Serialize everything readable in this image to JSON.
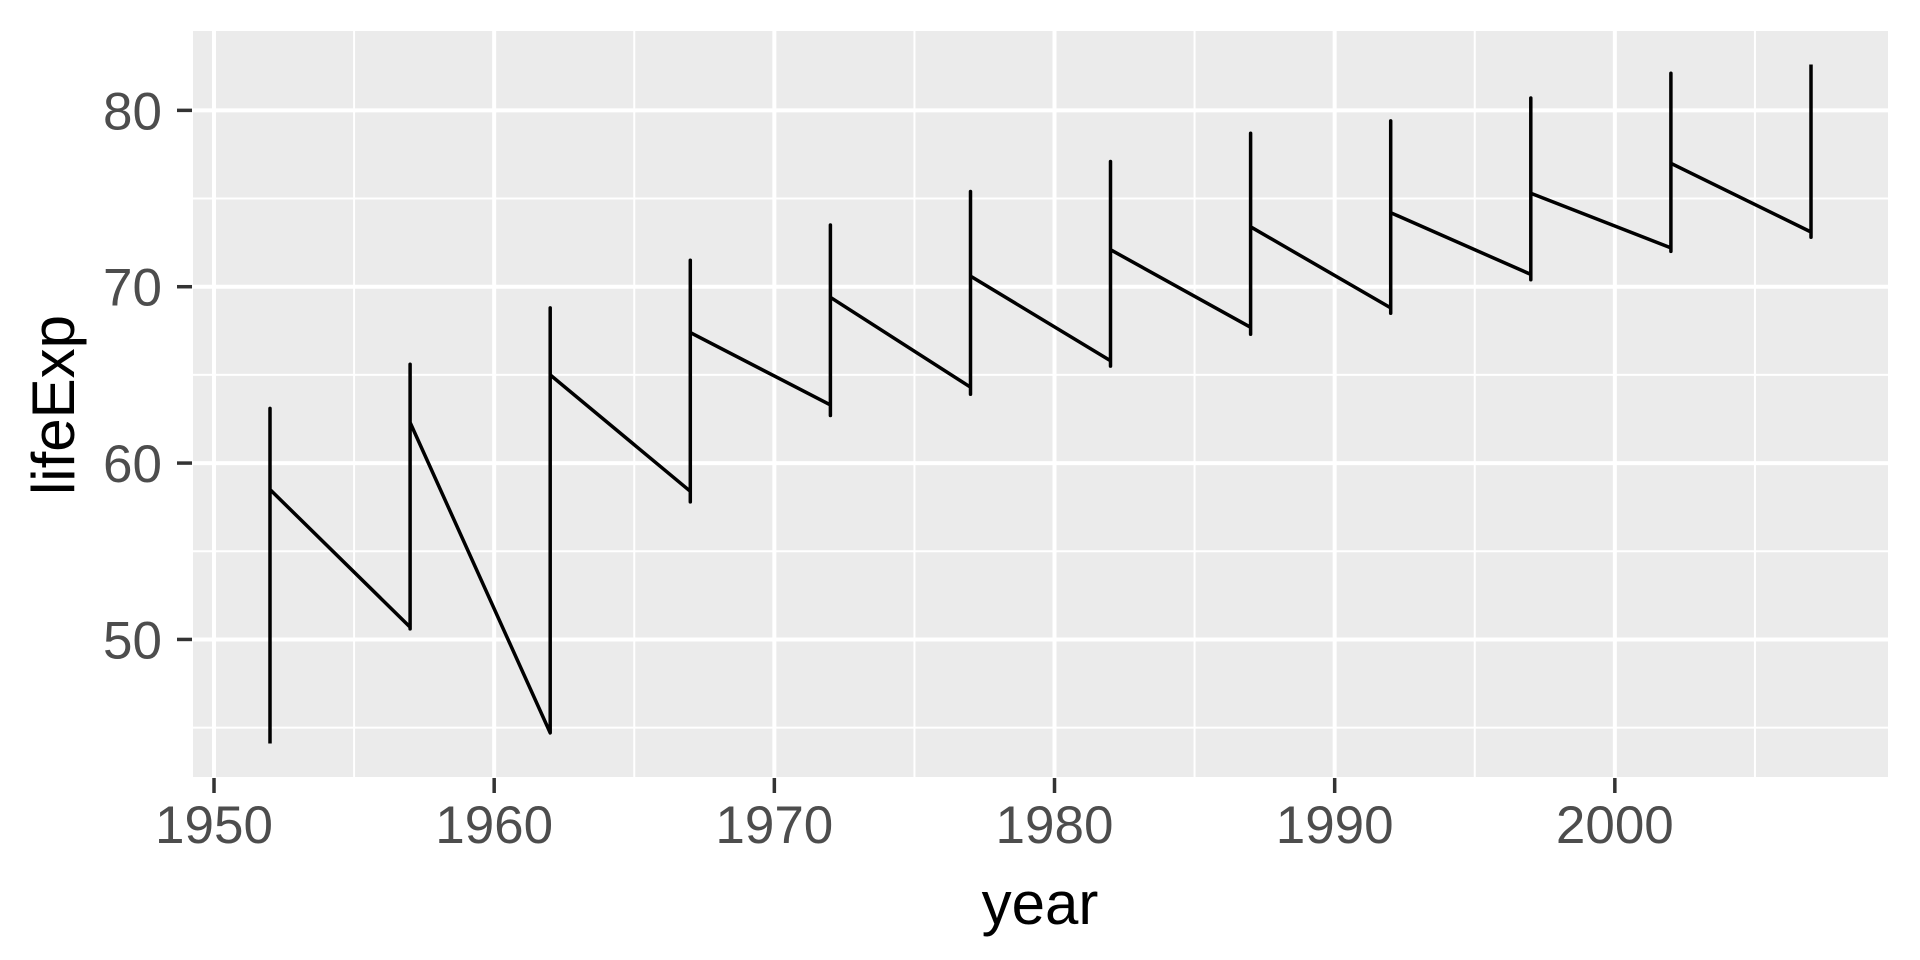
{
  "chart_data": {
    "type": "line",
    "title": "",
    "xlabel": "year",
    "ylabel": "lifeExp",
    "xlim": [
      1949.25,
      2009.75
    ],
    "ylim": [
      42.2,
      84.5
    ],
    "x_major_ticks": [
      1950,
      1960,
      1970,
      1980,
      1990,
      2000
    ],
    "x_minor_ticks": [
      1955,
      1965,
      1975,
      1985,
      1995,
      2005
    ],
    "y_major_ticks": [
      50,
      60,
      70,
      80
    ],
    "y_minor_ticks": [
      45,
      55,
      65,
      75
    ],
    "grid": "white major and minor gridlines on gray panel",
    "legend": "none",
    "note": "Single geom_line over data with tied x values (one point per country per year): at each year the line sweeps vertically between min and max lifeExp, entering at 'enter' from the previous year's 'exit' via a straight diagonal.",
    "series": [
      {
        "name": "lifeExp",
        "segments": [
          {
            "year": 1952,
            "enter": null,
            "min": 44.1,
            "max": 63.1,
            "exit": 58.5
          },
          {
            "year": 1957,
            "enter": 50.7,
            "min": 50.6,
            "max": 65.6,
            "exit": 62.3
          },
          {
            "year": 1962,
            "enter": 44.7,
            "min": 44.7,
            "max": 68.8,
            "exit": 65.0
          },
          {
            "year": 1967,
            "enter": 58.4,
            "min": 57.8,
            "max": 71.5,
            "exit": 67.4
          },
          {
            "year": 1972,
            "enter": 63.3,
            "min": 62.7,
            "max": 73.5,
            "exit": 69.4
          },
          {
            "year": 1977,
            "enter": 64.3,
            "min": 63.9,
            "max": 75.4,
            "exit": 70.6
          },
          {
            "year": 1982,
            "enter": 65.8,
            "min": 65.5,
            "max": 77.1,
            "exit": 72.1
          },
          {
            "year": 1987,
            "enter": 67.7,
            "min": 67.3,
            "max": 78.7,
            "exit": 73.4
          },
          {
            "year": 1992,
            "enter": 68.8,
            "min": 68.5,
            "max": 79.4,
            "exit": 74.2
          },
          {
            "year": 1997,
            "enter": 70.7,
            "min": 70.4,
            "max": 80.7,
            "exit": 75.3
          },
          {
            "year": 2002,
            "enter": 72.2,
            "min": 72.0,
            "max": 82.1,
            "exit": 77.0
          },
          {
            "year": 2007,
            "enter": 73.1,
            "min": 72.8,
            "max": 82.6,
            "exit": null
          }
        ]
      }
    ],
    "colors": {
      "panel_background": "#EBEBEB",
      "grid": "#FFFFFF",
      "line": "#000000",
      "tick_label": "#4D4D4D",
      "tick_mark": "#333333",
      "axis_title": "#000000",
      "figure_background": "#FFFFFF"
    }
  }
}
